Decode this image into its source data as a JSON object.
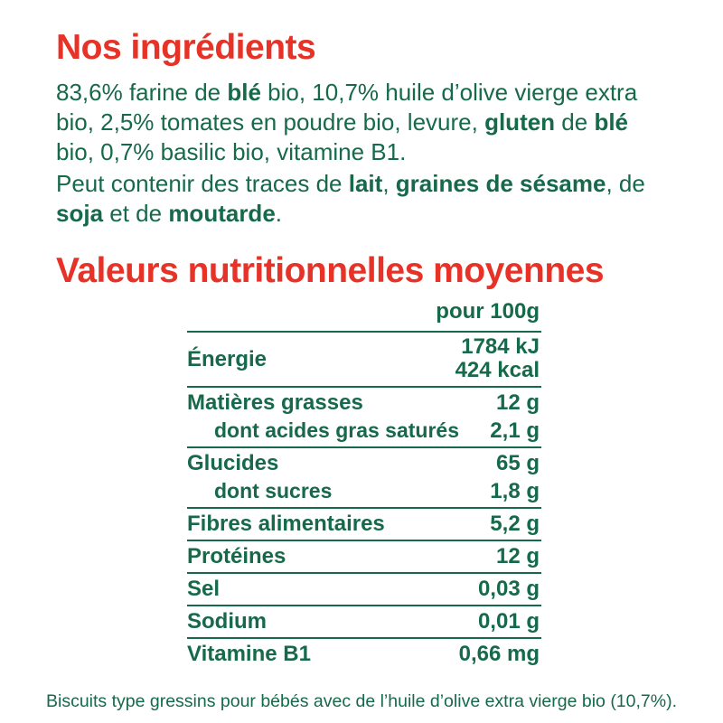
{
  "colors": {
    "accent_red": "#e73228",
    "text_green": "#16694a"
  },
  "ingredients": {
    "title": "Nos ingrédients",
    "paragraph1": [
      {
        "t": "83,6% farine de ",
        "b": false
      },
      {
        "t": "blé",
        "b": true
      },
      {
        "t": " bio, 10,7% huile d’olive vierge extra bio, 2,5% tomates en poudre bio, levure, ",
        "b": false
      },
      {
        "t": "gluten",
        "b": true
      },
      {
        "t": " de ",
        "b": false
      },
      {
        "t": "blé",
        "b": true
      },
      {
        "t": " bio, 0,7% basilic bio, vitamine B1.",
        "b": false
      }
    ],
    "paragraph2": [
      {
        "t": "Peut contenir des traces de ",
        "b": false
      },
      {
        "t": "lait",
        "b": true
      },
      {
        "t": ", ",
        "b": false
      },
      {
        "t": "graines de sésame",
        "b": true
      },
      {
        "t": ", de ",
        "b": false
      },
      {
        "t": "soja",
        "b": true
      },
      {
        "t": " et de ",
        "b": false
      },
      {
        "t": "moutarde",
        "b": true
      },
      {
        "t": ".",
        "b": false
      }
    ]
  },
  "nutrition": {
    "title": "Valeurs nutritionnelles moyennes",
    "column_header": "pour 100g",
    "rows": [
      {
        "label": "Énergie",
        "values": [
          "1784 kJ",
          "424 kcal"
        ],
        "rule": true,
        "indent": false
      },
      {
        "label": "Matières grasses",
        "values": [
          "12 g"
        ],
        "rule": true,
        "indent": false
      },
      {
        "label": "dont acides gras saturés",
        "values": [
          "2,1 g"
        ],
        "rule": false,
        "indent": true
      },
      {
        "label": "Glucides",
        "values": [
          "65 g"
        ],
        "rule": true,
        "indent": false
      },
      {
        "label": "dont sucres",
        "values": [
          "1,8 g"
        ],
        "rule": false,
        "indent": true
      },
      {
        "label": "Fibres alimentaires",
        "values": [
          "5,2 g"
        ],
        "rule": true,
        "indent": false
      },
      {
        "label": "Protéines",
        "values": [
          "12 g"
        ],
        "rule": true,
        "indent": false
      },
      {
        "label": "Sel",
        "values": [
          "0,03 g"
        ],
        "rule": true,
        "indent": false
      },
      {
        "label": "Sodium",
        "values": [
          "0,01 g"
        ],
        "rule": true,
        "indent": false
      },
      {
        "label": "Vitamine B1",
        "values": [
          "0,66 mg"
        ],
        "rule": true,
        "indent": false
      }
    ]
  },
  "footer": "Biscuits type gressins pour bébés avec de l’huile d’olive extra vierge bio (10,7%)."
}
